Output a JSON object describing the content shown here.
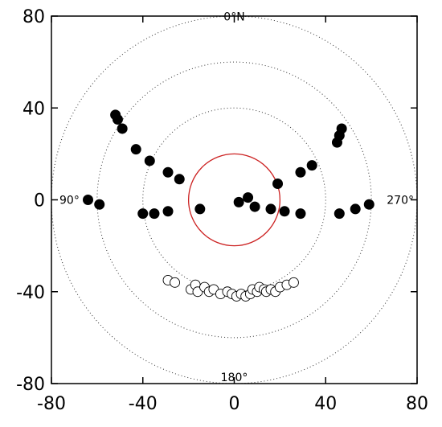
{
  "chart_data": {
    "type": "scatter",
    "xlim": [
      -80,
      80
    ],
    "ylim": [
      -80,
      80
    ],
    "x_ticks": [
      -80,
      -40,
      0,
      40,
      80
    ],
    "y_ticks": [
      -80,
      -40,
      0,
      40,
      80
    ],
    "x_tick_labels": [
      "-80",
      "-40",
      "0",
      "40",
      "80"
    ],
    "y_tick_labels": [
      "-80",
      "-40",
      "0",
      "40",
      "80"
    ],
    "grid": false,
    "reference_circles": {
      "dotted_radii": [
        40,
        60,
        80
      ],
      "solid_radius": 20,
      "solid_color": "#cc2222"
    },
    "direction_labels": {
      "north": "0°N",
      "south": "180°",
      "east": "90°",
      "west": "270°"
    },
    "series": [
      {
        "marker": "filled-circle",
        "color": "#000000",
        "points": [
          [
            -64,
            0
          ],
          [
            -59,
            -2
          ],
          [
            -52,
            37
          ],
          [
            -51,
            35
          ],
          [
            -49,
            31
          ],
          [
            -43,
            22
          ],
          [
            -37,
            17
          ],
          [
            -29,
            12
          ],
          [
            -24,
            9
          ],
          [
            -40,
            -6
          ],
          [
            -35,
            -6
          ],
          [
            -29,
            -5
          ],
          [
            -15,
            -4
          ],
          [
            2,
            -1
          ],
          [
            6,
            1
          ],
          [
            9,
            -3
          ],
          [
            16,
            -4
          ],
          [
            19,
            7
          ],
          [
            22,
            -5
          ],
          [
            29,
            -6
          ],
          [
            29,
            12
          ],
          [
            34,
            15
          ],
          [
            45,
            25
          ],
          [
            46,
            28
          ],
          [
            47,
            31
          ],
          [
            46,
            -6
          ],
          [
            53,
            -4
          ],
          [
            59,
            -2
          ]
        ]
      },
      {
        "marker": "open-circle",
        "color": "#000000",
        "points": [
          [
            -29,
            -35
          ],
          [
            -26,
            -36
          ],
          [
            -19,
            -39
          ],
          [
            -17,
            -37
          ],
          [
            -16,
            -40
          ],
          [
            -13,
            -38
          ],
          [
            -11,
            -40
          ],
          [
            -9,
            -39
          ],
          [
            -6,
            -41
          ],
          [
            -3,
            -40
          ],
          [
            -1,
            -41
          ],
          [
            1,
            -42
          ],
          [
            3,
            -41
          ],
          [
            5,
            -42
          ],
          [
            7,
            -41
          ],
          [
            8,
            -39
          ],
          [
            10,
            -40
          ],
          [
            11,
            -38
          ],
          [
            13,
            -39
          ],
          [
            14,
            -40
          ],
          [
            16,
            -39
          ],
          [
            18,
            -40
          ],
          [
            20,
            -38
          ],
          [
            23,
            -37
          ],
          [
            26,
            -36
          ]
        ]
      }
    ]
  }
}
